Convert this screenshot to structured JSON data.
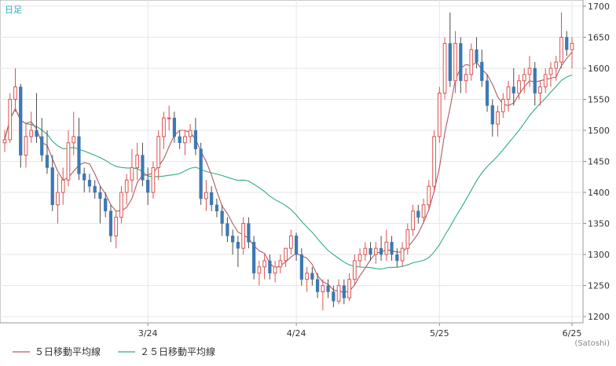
{
  "chart_data": {
    "type": "candlestick",
    "period_label": "日足",
    "credit": "(Satoshi)",
    "ylim": [
      1190,
      1710
    ],
    "yticks": [
      1200,
      1250,
      1300,
      1350,
      1400,
      1450,
      1500,
      1550,
      1600,
      1650,
      1700
    ],
    "x_labels": [
      {
        "index": 27,
        "label": "3/24"
      },
      {
        "index": 55,
        "label": "4/24"
      },
      {
        "index": 82,
        "label": "5/25"
      },
      {
        "index": 107,
        "label": "6/25"
      }
    ],
    "legend": [
      {
        "name": "５日移動平均線",
        "color": "#b05a64"
      },
      {
        "name": "２５日移動平均線",
        "color": "#2fae7b"
      }
    ],
    "colors": {
      "up": "#d9534f",
      "down": "#3c78b4",
      "ma5": "#b05a64",
      "ma25": "#2fae7b"
    },
    "candles": [
      [
        1480,
        1500,
        1465,
        1485
      ],
      [
        1485,
        1560,
        1480,
        1550
      ],
      [
        1550,
        1600,
        1530,
        1570
      ],
      [
        1570,
        1575,
        1440,
        1460
      ],
      [
        1460,
        1510,
        1440,
        1490
      ],
      [
        1490,
        1530,
        1480,
        1500
      ],
      [
        1500,
        1560,
        1480,
        1490
      ],
      [
        1490,
        1520,
        1450,
        1460
      ],
      [
        1460,
        1500,
        1430,
        1440
      ],
      [
        1440,
        1460,
        1370,
        1380
      ],
      [
        1380,
        1430,
        1350,
        1400
      ],
      [
        1400,
        1440,
        1380,
        1420
      ],
      [
        1420,
        1500,
        1410,
        1480
      ],
      [
        1480,
        1530,
        1460,
        1490
      ],
      [
        1490,
        1520,
        1420,
        1430
      ],
      [
        1430,
        1440,
        1400,
        1420
      ],
      [
        1420,
        1430,
        1400,
        1410
      ],
      [
        1410,
        1420,
        1390,
        1400
      ],
      [
        1400,
        1410,
        1350,
        1390
      ],
      [
        1390,
        1400,
        1360,
        1370
      ],
      [
        1370,
        1380,
        1320,
        1330
      ],
      [
        1330,
        1370,
        1310,
        1360
      ],
      [
        1360,
        1410,
        1350,
        1400
      ],
      [
        1400,
        1430,
        1380,
        1420
      ],
      [
        1420,
        1470,
        1400,
        1440
      ],
      [
        1440,
        1480,
        1420,
        1460
      ],
      [
        1460,
        1480,
        1410,
        1420
      ],
      [
        1420,
        1440,
        1380,
        1400
      ],
      [
        1400,
        1450,
        1390,
        1440
      ],
      [
        1440,
        1500,
        1420,
        1490
      ],
      [
        1490,
        1530,
        1470,
        1520
      ],
      [
        1520,
        1540,
        1500,
        1520
      ],
      [
        1520,
        1530,
        1480,
        1490
      ],
      [
        1490,
        1500,
        1470,
        1480
      ],
      [
        1480,
        1500,
        1460,
        1490
      ],
      [
        1490,
        1510,
        1480,
        1500
      ],
      [
        1500,
        1520,
        1460,
        1470
      ],
      [
        1470,
        1480,
        1380,
        1390
      ],
      [
        1390,
        1420,
        1370,
        1400
      ],
      [
        1400,
        1410,
        1370,
        1380
      ],
      [
        1380,
        1390,
        1360,
        1370
      ],
      [
        1370,
        1380,
        1330,
        1350
      ],
      [
        1350,
        1360,
        1320,
        1330
      ],
      [
        1330,
        1340,
        1300,
        1320
      ],
      [
        1320,
        1330,
        1280,
        1310
      ],
      [
        1310,
        1360,
        1300,
        1350
      ],
      [
        1350,
        1360,
        1310,
        1320
      ],
      [
        1320,
        1330,
        1260,
        1270
      ],
      [
        1270,
        1290,
        1250,
        1280
      ],
      [
        1280,
        1300,
        1260,
        1290
      ],
      [
        1290,
        1300,
        1260,
        1270
      ],
      [
        1270,
        1290,
        1255,
        1280
      ],
      [
        1280,
        1300,
        1270,
        1290
      ],
      [
        1290,
        1310,
        1280,
        1310
      ],
      [
        1310,
        1340,
        1300,
        1330
      ],
      [
        1330,
        1335,
        1290,
        1300
      ],
      [
        1300,
        1310,
        1250,
        1260
      ],
      [
        1260,
        1280,
        1240,
        1270
      ],
      [
        1270,
        1280,
        1250,
        1260
      ],
      [
        1260,
        1270,
        1230,
        1240
      ],
      [
        1240,
        1260,
        1210,
        1250
      ],
      [
        1250,
        1260,
        1230,
        1240
      ],
      [
        1240,
        1250,
        1215,
        1225
      ],
      [
        1225,
        1260,
        1220,
        1250
      ],
      [
        1250,
        1260,
        1220,
        1230
      ],
      [
        1230,
        1270,
        1225,
        1260
      ],
      [
        1260,
        1300,
        1250,
        1290
      ],
      [
        1290,
        1310,
        1280,
        1300
      ],
      [
        1300,
        1320,
        1290,
        1310
      ],
      [
        1310,
        1320,
        1290,
        1300
      ],
      [
        1300,
        1320,
        1285,
        1310
      ],
      [
        1310,
        1330,
        1290,
        1300
      ],
      [
        1300,
        1340,
        1290,
        1320
      ],
      [
        1320,
        1330,
        1290,
        1300
      ],
      [
        1300,
        1310,
        1280,
        1290
      ],
      [
        1290,
        1320,
        1280,
        1310
      ],
      [
        1310,
        1350,
        1300,
        1340
      ],
      [
        1340,
        1380,
        1330,
        1370
      ],
      [
        1370,
        1380,
        1350,
        1360
      ],
      [
        1360,
        1390,
        1350,
        1380
      ],
      [
        1380,
        1420,
        1370,
        1410
      ],
      [
        1410,
        1500,
        1400,
        1490
      ],
      [
        1490,
        1570,
        1480,
        1560
      ],
      [
        1560,
        1650,
        1550,
        1640
      ],
      [
        1640,
        1690,
        1570,
        1580
      ],
      [
        1580,
        1660,
        1560,
        1640
      ],
      [
        1640,
        1650,
        1560,
        1580
      ],
      [
        1580,
        1600,
        1560,
        1590
      ],
      [
        1590,
        1640,
        1580,
        1630
      ],
      [
        1630,
        1650,
        1600,
        1610
      ],
      [
        1610,
        1630,
        1570,
        1580
      ],
      [
        1580,
        1590,
        1530,
        1540
      ],
      [
        1540,
        1550,
        1490,
        1510
      ],
      [
        1510,
        1540,
        1490,
        1530
      ],
      [
        1530,
        1560,
        1520,
        1550
      ],
      [
        1550,
        1580,
        1530,
        1570
      ],
      [
        1570,
        1600,
        1540,
        1560
      ],
      [
        1560,
        1590,
        1550,
        1580
      ],
      [
        1580,
        1600,
        1560,
        1590
      ],
      [
        1590,
        1620,
        1570,
        1600
      ],
      [
        1600,
        1610,
        1540,
        1560
      ],
      [
        1560,
        1580,
        1540,
        1570
      ],
      [
        1570,
        1600,
        1560,
        1590
      ],
      [
        1590,
        1610,
        1570,
        1600
      ],
      [
        1600,
        1620,
        1580,
        1610
      ],
      [
        1610,
        1690,
        1600,
        1650
      ],
      [
        1650,
        1660,
        1620,
        1630
      ],
      [
        1630,
        1650,
        1600,
        1640
      ]
    ]
  }
}
